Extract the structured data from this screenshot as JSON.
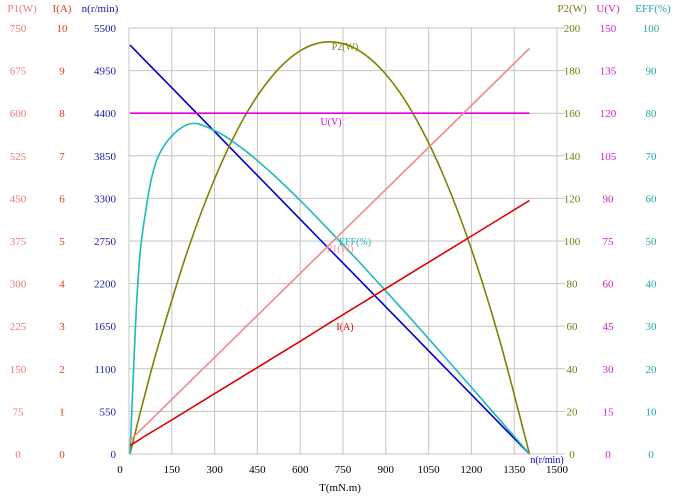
{
  "chart_data": {
    "type": "line",
    "title": "",
    "xlabel": "T(mN.m)",
    "xlim": [
      0,
      1500
    ],
    "xticks": [
      "0",
      "150",
      "300",
      "450",
      "600",
      "750",
      "900",
      "1050",
      "1200",
      "1350",
      "1500"
    ],
    "grid": true,
    "axes": [
      {
        "key": "P1",
        "label": "P1(W)",
        "side": "left",
        "range": [
          0,
          750
        ],
        "ticks": [
          "0",
          "75",
          "150",
          "225",
          "300",
          "375",
          "450",
          "525",
          "600",
          "675",
          "750"
        ],
        "color": "#f07878"
      },
      {
        "key": "I",
        "label": "I(A)",
        "side": "left",
        "range": [
          0,
          10
        ],
        "ticks": [
          "0",
          "1",
          "2",
          "3",
          "4",
          "5",
          "6",
          "7",
          "8",
          "9",
          "10"
        ],
        "color": "#e03a1e"
      },
      {
        "key": "n",
        "label": "n(r/min)",
        "side": "left",
        "range": [
          0,
          5500
        ],
        "ticks": [
          "0",
          "550",
          "1100",
          "1650",
          "2200",
          "2750",
          "3300",
          "3850",
          "4400",
          "4950",
          "5500"
        ],
        "color": "#1a1aa8"
      },
      {
        "key": "P2",
        "label": "P2(W)",
        "side": "right",
        "range": [
          0,
          200
        ],
        "ticks": [
          "0",
          "20",
          "40",
          "60",
          "80",
          "100",
          "120",
          "140",
          "160",
          "180",
          "200"
        ],
        "color": "#7a7a10"
      },
      {
        "key": "U",
        "label": "U(V)",
        "side": "right",
        "range": [
          0,
          150
        ],
        "ticks": [
          "0",
          "15",
          "30",
          "45",
          "60",
          "75",
          "90",
          "105",
          "120",
          "135",
          "150"
        ],
        "color": "#d020d0"
      },
      {
        "key": "EFF",
        "label": "EFF(%)",
        "side": "right",
        "range": [
          0,
          100
        ],
        "ticks": [
          "0",
          "10",
          "20",
          "30",
          "40",
          "50",
          "60",
          "70",
          "80",
          "90",
          "100"
        ],
        "color": "#20a8a8"
      }
    ],
    "x": [
      0,
      25,
      50,
      100,
      200,
      300,
      400,
      500,
      600,
      700,
      800,
      900,
      1000,
      1100,
      1200,
      1300,
      1400
    ],
    "series": [
      {
        "name": "n(r/min)",
        "axis": "n",
        "color": "#0000c8",
        "values": [
          5280,
          5186,
          5091,
          4903,
          4526,
          4149,
          3771,
          3394,
          3017,
          2640,
          2263,
          1886,
          1509,
          1131,
          754,
          377,
          0
        ]
      },
      {
        "name": "P2(W)",
        "axis": "P2",
        "color": "#808000",
        "values": [
          0,
          13.6,
          26.7,
          51.3,
          94.8,
          130.3,
          158.0,
          177.7,
          189.6,
          193.5,
          189.6,
          177.7,
          158.0,
          130.3,
          94.8,
          51.3,
          0
        ]
      },
      {
        "name": "U(V)",
        "axis": "U",
        "color": "#e000e0",
        "values": [
          120,
          120,
          120,
          120,
          120,
          120,
          120,
          120,
          120,
          120,
          120,
          120,
          120,
          120,
          120,
          120,
          120
        ]
      },
      {
        "name": "EFF(%)",
        "axis": "EFF",
        "color": "#20b8b8",
        "values": [
          0,
          37.4,
          54.9,
          70.0,
          77.3,
          75.8,
          71.4,
          65.7,
          59.3,
          52.4,
          45.3,
          38.0,
          30.6,
          23.0,
          15.4,
          7.7,
          0
        ]
      },
      {
        "name": "P1(W)",
        "axis": "P1",
        "color": "#f08a8a",
        "values": [
          24,
          36.3,
          48.6,
          73.3,
          122.6,
          171.9,
          221.2,
          270.4,
          319.7,
          369.0,
          418.3,
          467.6,
          516.8,
          566.1,
          615.4,
          664.7,
          714
        ]
      },
      {
        "name": "I(A)",
        "axis": "I",
        "color": "#e00000",
        "values": [
          0.2,
          0.3,
          0.41,
          0.61,
          1.02,
          1.43,
          1.84,
          2.25,
          2.66,
          3.08,
          3.49,
          3.9,
          4.31,
          4.72,
          5.13,
          5.54,
          5.95
        ]
      }
    ]
  }
}
